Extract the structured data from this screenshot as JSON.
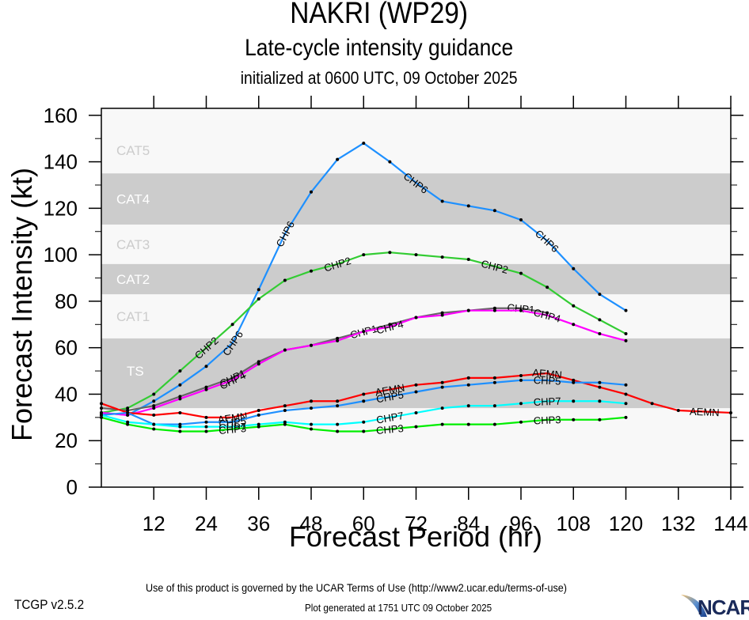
{
  "header": {
    "title": "NAKRI (WP29)",
    "subtitle": "Late-cycle intensity guidance",
    "init_line": "initialized at 0600 UTC, 09 October 2025"
  },
  "footer": {
    "terms": "Use of this product is governed by the UCAR Terms of Use (http://www2.ucar.edu/terms-of-use)",
    "version": "TCGP v2.5.2",
    "generated": "Plot generated at 1751 UTC   09 October 2025",
    "logo_text": "NCAR"
  },
  "chart_data": {
    "type": "line",
    "title": "NAKRI (WP29)",
    "xlabel": "Forecast Period (hr)",
    "ylabel": "Forecast Intensity (kt)",
    "xlim": [
      0,
      144
    ],
    "ylim": [
      0,
      163
    ],
    "xticks": [
      12,
      24,
      36,
      48,
      60,
      72,
      84,
      96,
      108,
      120,
      132,
      144
    ],
    "yticks": [
      0,
      20,
      40,
      60,
      80,
      100,
      120,
      140,
      160
    ],
    "grid": false,
    "category_bands": [
      {
        "label": "TS",
        "min": 34,
        "max": 64,
        "shaded": true
      },
      {
        "label": "CAT1",
        "min": 64,
        "max": 83,
        "shaded": false
      },
      {
        "label": "CAT2",
        "min": 83,
        "max": 96,
        "shaded": true
      },
      {
        "label": "CAT3",
        "min": 96,
        "max": 113,
        "shaded": false
      },
      {
        "label": "CAT4",
        "min": 113,
        "max": 135,
        "shaded": true
      },
      {
        "label": "CAT5",
        "min": 135,
        "max": 163,
        "shaded": false
      }
    ],
    "colors": {
      "band_shaded": "#cccccc",
      "band_light": "#f8f8f8",
      "band_label_on_shade": "#ffffff",
      "band_label_on_light": "#cccccc"
    },
    "series": [
      {
        "name": "CHP6",
        "color": "#1e90ff",
        "label_at": [
          30,
          42,
          72,
          102
        ],
        "x": [
          0,
          6,
          12,
          18,
          24,
          30,
          36,
          42,
          48,
          54,
          60,
          66,
          72,
          78,
          84,
          90,
          96,
          102,
          108,
          114,
          120
        ],
        "y": [
          32,
          31,
          37,
          44,
          52,
          62,
          85,
          109,
          127,
          141,
          148,
          140,
          131,
          123,
          121,
          119,
          115,
          106,
          94,
          83,
          76
        ]
      },
      {
        "name": "CHP2",
        "color": "#33cc33",
        "label_at": [
          24,
          54,
          90
        ],
        "x": [
          0,
          6,
          12,
          18,
          24,
          30,
          36,
          42,
          48,
          54,
          60,
          66,
          72,
          78,
          84,
          90,
          96,
          102,
          108,
          114,
          120
        ],
        "y": [
          32,
          34,
          40,
          50,
          60,
          70,
          81,
          89,
          93,
          96,
          100,
          101,
          100,
          99,
          98,
          95,
          92,
          86,
          78,
          72,
          66
        ]
      },
      {
        "name": "CHP1",
        "color": "#666666",
        "label_at": [
          30,
          60,
          96
        ],
        "x": [
          0,
          6,
          12,
          18,
          24,
          30,
          36,
          42,
          48,
          54,
          60,
          66,
          72,
          78,
          84,
          90,
          96,
          102
        ],
        "y": [
          34,
          33,
          35,
          39,
          43,
          47,
          54,
          59,
          61,
          64,
          67,
          70,
          73,
          75,
          76,
          77,
          77,
          75
        ]
      },
      {
        "name": "CHP4",
        "color": "#ff00ff",
        "label_at": [
          30,
          66,
          102
        ],
        "x": [
          0,
          6,
          12,
          18,
          24,
          30,
          36,
          42,
          48,
          54,
          60,
          66,
          72,
          78,
          84,
          90,
          96,
          102,
          108,
          114,
          120
        ],
        "y": [
          32,
          31,
          34,
          38,
          42,
          46,
          53,
          59,
          61,
          63,
          67,
          69,
          73,
          74,
          76,
          76,
          76,
          74,
          70,
          66,
          63
        ]
      },
      {
        "name": "AEMN",
        "color": "#ff0000",
        "label_at": [
          30,
          66,
          102,
          138
        ],
        "x": [
          0,
          6,
          12,
          18,
          24,
          30,
          36,
          42,
          48,
          54,
          60,
          66,
          72,
          78,
          84,
          90,
          96,
          102,
          108,
          114,
          120,
          126,
          132,
          138,
          144
        ],
        "y": [
          36,
          32,
          31,
          32,
          30,
          30,
          33,
          35,
          37,
          37,
          40,
          42,
          44,
          45,
          47,
          47,
          48,
          49,
          46,
          43,
          40,
          36,
          33,
          32.5,
          32
        ]
      },
      {
        "name": "CHP5",
        "color": "#1e90ff",
        "label_at": [
          30,
          66,
          102
        ],
        "x": [
          0,
          6,
          12,
          18,
          24,
          30,
          36,
          42,
          48,
          54,
          60,
          66,
          72,
          78,
          84,
          90,
          96,
          102,
          108,
          114,
          120
        ],
        "y": [
          31,
          32,
          27,
          27,
          28,
          28,
          31,
          33,
          34,
          35,
          37,
          39,
          41,
          43,
          44,
          45,
          46,
          46,
          45,
          45,
          44
        ]
      },
      {
        "name": "CHP7",
        "color": "#00ffff",
        "label_at": [
          30,
          66,
          102
        ],
        "x": [
          0,
          6,
          12,
          18,
          24,
          30,
          36,
          42,
          48,
          54,
          60,
          66,
          72,
          78,
          84,
          90,
          96,
          102,
          108,
          114,
          120
        ],
        "y": [
          31,
          28,
          27,
          26,
          26,
          26,
          27,
          28,
          27,
          27,
          28,
          30,
          32,
          34,
          35,
          35,
          36,
          37,
          37,
          37,
          36
        ]
      },
      {
        "name": "CHP3",
        "color": "#00ee00",
        "label_at": [
          30,
          66,
          102
        ],
        "x": [
          0,
          6,
          12,
          18,
          24,
          30,
          36,
          42,
          48,
          54,
          60,
          66,
          72,
          78,
          84,
          90,
          96,
          102,
          108,
          114,
          120
        ],
        "y": [
          30,
          27,
          25,
          24,
          24,
          25,
          26,
          27,
          25,
          24,
          24,
          25,
          26,
          27,
          27,
          27,
          28,
          29,
          29,
          29,
          30
        ]
      }
    ]
  }
}
